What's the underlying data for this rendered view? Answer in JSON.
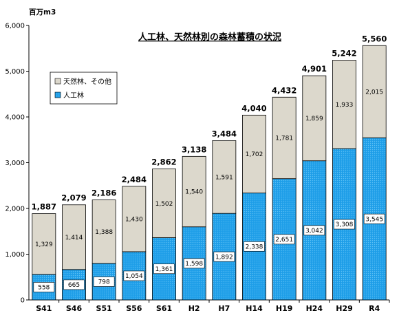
{
  "chart_data": {
    "type": "bar",
    "stacked": true,
    "title": "人工林、天然林別の森林蓄積の状況",
    "ylabel": "百万m3",
    "ylim": [
      0,
      6000
    ],
    "yticks": [
      "0",
      "1,000",
      "2,000",
      "3,000",
      "4,000",
      "5,000",
      "6,000"
    ],
    "categories": [
      "S41",
      "S46",
      "S51",
      "S56",
      "S61",
      "H2",
      "H7",
      "H14",
      "H19",
      "H24",
      "H29",
      "R4"
    ],
    "series": [
      {
        "name": "人工林",
        "color": "#1a9be6",
        "values": [
          558,
          665,
          798,
          1054,
          1361,
          1598,
          1892,
          2338,
          2651,
          3042,
          3308,
          3545
        ],
        "labels": [
          "558",
          "665",
          "798",
          "1,054",
          "1,361",
          "1,598",
          "1,892",
          "2,338",
          "2,651",
          "3,042",
          "3,308",
          "3,545"
        ]
      },
      {
        "name": "天然林、その他",
        "color": "#dcd8cc",
        "values": [
          1329,
          1414,
          1388,
          1430,
          1502,
          1540,
          1591,
          1702,
          1781,
          1859,
          1933,
          2015
        ],
        "labels": [
          "1,329",
          "1,414",
          "1,388",
          "1,430",
          "1,502",
          "1,540",
          "1,591",
          "1,702",
          "1,781",
          "1,859",
          "1,933",
          "2,015"
        ]
      }
    ],
    "totals": [
      "1,887",
      "2,079",
      "2,186",
      "2,484",
      "2,862",
      "3,138",
      "3,484",
      "4,040",
      "4,432",
      "4,901",
      "5,242",
      "5,560"
    ],
    "legend_position": "top-left",
    "grid": false
  }
}
